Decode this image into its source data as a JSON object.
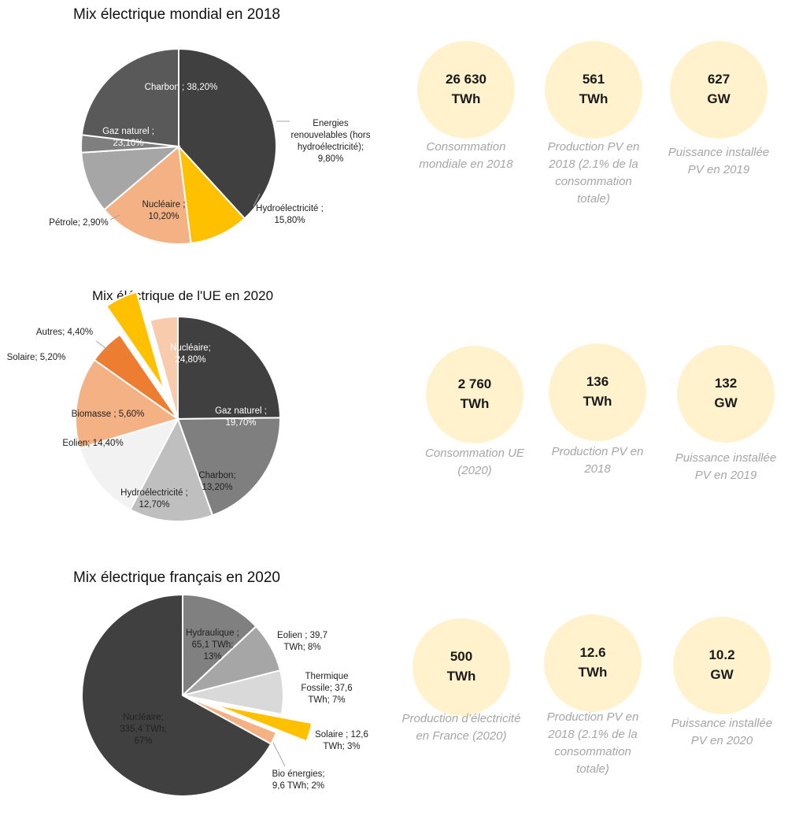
{
  "chart_data": [
    {
      "type": "pie",
      "title": "Mix électrique mondial en 2018",
      "slices": [
        {
          "label": [
            "Charbon ; 38,20%"
          ],
          "value": 38.2,
          "color": "#404040",
          "text_color": "#ffffff"
        },
        {
          "label": [
            "Energies",
            "renouvelables (hors",
            "hydroélectricité);",
            "9,80%"
          ],
          "value": 9.8,
          "color": "#ffc000",
          "text_color": "#222222"
        },
        {
          "label": [
            "Hydroélectricité ;",
            "15,80%"
          ],
          "value": 15.8,
          "color": "#f4b183",
          "text_color": "#222222"
        },
        {
          "label": [
            "Nucléaire ;",
            "10,20%"
          ],
          "value": 10.2,
          "color": "#a6a6a6",
          "text_color": "#222222"
        },
        {
          "label": [
            "Pétrole; 2,90%"
          ],
          "value": 2.9,
          "color": "#7f7f7f",
          "text_color": "#222222"
        },
        {
          "label": [
            "Gaz naturel ;",
            "23,10%"
          ],
          "value": 23.1,
          "color": "#595959",
          "text_color": "#ffffff"
        }
      ]
    },
    {
      "type": "pie",
      "title": "Mix éléctrique de l'UE en 2020",
      "slices": [
        {
          "label": [
            "Nucléaire;",
            "24,80%"
          ],
          "value": 24.8,
          "color": "#404040",
          "text_color": "#ffffff"
        },
        {
          "label": [
            "Gaz naturel ;",
            "19,70%"
          ],
          "value": 19.7,
          "color": "#7f7f7f",
          "text_color": "#ffffff"
        },
        {
          "label": [
            "Charbon;",
            "13,20%"
          ],
          "value": 13.2,
          "color": "#bfbfbf",
          "text_color": "#222222"
        },
        {
          "label": [
            "Hydroélectricité ;",
            "12,70%"
          ],
          "value": 12.7,
          "color": "#f2f2f2",
          "text_color": "#222222"
        },
        {
          "label": [
            "Eolien; 14,40%"
          ],
          "value": 14.4,
          "color": "#f4b183",
          "text_color": "#222222"
        },
        {
          "label": [
            "Biomasse ; 5,60%"
          ],
          "value": 5.6,
          "color": "#ed7d31",
          "text_color": "#222222"
        },
        {
          "label": [
            "Solaire; 5,20%"
          ],
          "value": 5.2,
          "color": "#ffc000",
          "text_color": "#222222"
        },
        {
          "label": [
            "Autres; 4,40%"
          ],
          "value": 4.4,
          "color": "#f8cbad",
          "text_color": "#222222"
        }
      ]
    },
    {
      "type": "pie",
      "title": "Mix électrique français en 2020",
      "slices": [
        {
          "label": [
            "Hydraulique ;",
            "65,1 TWh;",
            "13%"
          ],
          "value": 13,
          "color": "#808080",
          "text_color": "#222222"
        },
        {
          "label": [
            "Eolien ; 39,7",
            "TWh; 8%"
          ],
          "value": 8,
          "color": "#a6a6a6",
          "text_color": "#222222"
        },
        {
          "label": [
            "Thermique",
            "Fossile; 37,6",
            "TWh; 7%"
          ],
          "value": 7,
          "color": "#d9d9d9",
          "text_color": "#222222"
        },
        {
          "label": [
            "Solaire ; 12,6",
            "TWh; 3%"
          ],
          "value": 3,
          "color": "#ffc000",
          "text_color": "#222222"
        },
        {
          "label": [
            "Bio énergies;",
            "9,6 TWh; 2%"
          ],
          "value": 2,
          "color": "#f4b183",
          "text_color": "#222222"
        },
        {
          "label": [
            "Nucléaire;",
            "335,4 TWh;",
            "67%"
          ],
          "value": 67,
          "color": "#404040",
          "text_color": "#222222"
        }
      ]
    }
  ],
  "stats": [
    [
      {
        "lines": [
          "26 630",
          "TWh"
        ],
        "caption": [
          "Consommation",
          "mondiale en 2018"
        ]
      },
      {
        "lines": [
          "561",
          "TWh"
        ],
        "caption": [
          "Production PV en",
          "2018 (2.1% de la",
          "consommation",
          "totale)"
        ]
      },
      {
        "lines": [
          "627",
          "GW"
        ],
        "caption": [
          "Puissance installée",
          "PV en 2019"
        ]
      }
    ],
    [
      {
        "lines": [
          "2 760",
          "TWh"
        ],
        "caption": [
          "Consommation UE",
          "(2020)"
        ]
      },
      {
        "lines": [
          "136",
          "TWh"
        ],
        "caption": [
          "Production PV en",
          "2018"
        ]
      },
      {
        "lines": [
          "132",
          "GW"
        ],
        "caption": [
          "Puissance installée",
          "PV en 2019"
        ]
      }
    ],
    [
      {
        "lines": [
          "500",
          "TWh"
        ],
        "caption": [
          "Production d’électricité",
          "en France (2020)"
        ]
      },
      {
        "lines": [
          "12.6",
          "TWh"
        ],
        "caption": [
          "Production PV en",
          "2018 (2.1% de la",
          "consommation",
          "totale)"
        ]
      },
      {
        "lines": [
          "10.2",
          "GW"
        ],
        "caption": [
          "Puissance installée",
          "PV en 2020"
        ]
      }
    ]
  ]
}
